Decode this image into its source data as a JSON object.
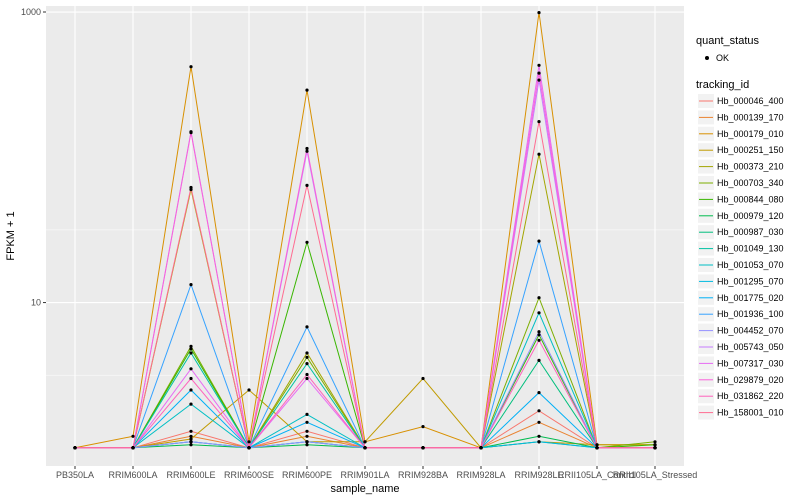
{
  "chart_data": {
    "type": "line",
    "xlabel": "sample_name",
    "ylabel": "FPKM + 1",
    "y_scale": "log10",
    "ylim": [
      0.75,
      1100
    ],
    "y_ticks": [
      10,
      1000
    ],
    "grid": true,
    "legend_placement": "right",
    "background_color": "#ebebeb",
    "grid_color": "#ffffff",
    "categories": [
      "PB350LA",
      "RRIM600LA",
      "RRIM600LE",
      "RRIM600SE",
      "RRIM600PE",
      "RRIM901LA",
      "RRIM928BA",
      "RRIM928LA",
      "RRIM928LE",
      "RRII105LA_Control",
      "RRII105LA_Stressed"
    ],
    "point_legend": {
      "title": "quant_status",
      "label": "OK"
    },
    "series_legend_title": "tracking_id",
    "series": [
      {
        "name": "Hb_000046_400",
        "color": "#F8766D",
        "values": [
          1,
          1,
          1.3,
          1,
          1.3,
          1,
          1,
          1,
          1.8,
          1,
          1
        ]
      },
      {
        "name": "Hb_000139_170",
        "color": "#EA8331",
        "values": [
          1,
          1,
          1.2,
          1,
          1.2,
          1,
          1,
          1,
          1.5,
          1,
          1
        ]
      },
      {
        "name": "Hb_000179_010",
        "color": "#D89000",
        "values": [
          1,
          1.2,
          420,
          1.1,
          290,
          1.1,
          1.4,
          1,
          990,
          1.05,
          1.05
        ]
      },
      {
        "name": "Hb_000251_150",
        "color": "#C09B00",
        "values": [
          1,
          1,
          1.15,
          2.5,
          1.1,
          1.1,
          3.0,
          1,
          1.1,
          1.05,
          1.05
        ]
      },
      {
        "name": "Hb_000373_210",
        "color": "#A3A500",
        "values": [
          1,
          1,
          60,
          1,
          4.5,
          1,
          1,
          1,
          105,
          1,
          1
        ]
      },
      {
        "name": "Hb_000703_340",
        "color": "#7CAE00",
        "values": [
          1,
          1,
          5.0,
          1,
          4.2,
          1,
          1,
          1,
          10.8,
          1,
          1.1
        ]
      },
      {
        "name": "Hb_000844_080",
        "color": "#39B600",
        "values": [
          1,
          1,
          4.8,
          1,
          26,
          1,
          1,
          1,
          6.0,
          1,
          1.05
        ]
      },
      {
        "name": "Hb_000979_120",
        "color": "#00BB4E",
        "values": [
          1,
          1,
          1.05,
          1,
          1.05,
          1,
          1,
          1,
          1.2,
          1,
          1
        ]
      },
      {
        "name": "Hb_000987_030",
        "color": "#00BF7D",
        "values": [
          1,
          1,
          1.1,
          1,
          1.1,
          1,
          1,
          1,
          4.0,
          1,
          1
        ]
      },
      {
        "name": "Hb_001049_130",
        "color": "#00C1A3",
        "values": [
          1,
          1,
          4.5,
          1,
          3.8,
          1,
          1,
          1,
          1.1,
          1,
          1
        ]
      },
      {
        "name": "Hb_001053_070",
        "color": "#00BFC4",
        "values": [
          1,
          1,
          2.0,
          1,
          1.7,
          1,
          1,
          1,
          8.5,
          1,
          1
        ]
      },
      {
        "name": "Hb_001295_070",
        "color": "#00BAE0",
        "values": [
          1,
          1,
          1.1,
          1,
          1.1,
          1,
          1,
          1,
          1.1,
          1,
          1
        ]
      },
      {
        "name": "Hb_001775_020",
        "color": "#00B0F6",
        "values": [
          1,
          1,
          2.5,
          1,
          1.5,
          1,
          1,
          1,
          2.4,
          1,
          1
        ]
      },
      {
        "name": "Hb_001936_100",
        "color": "#35A2FF",
        "values": [
          1,
          1,
          13.3,
          1,
          6.8,
          1,
          1,
          1,
          26.5,
          1,
          1
        ]
      },
      {
        "name": "Hb_004452_070",
        "color": "#9590FF",
        "values": [
          1,
          1,
          1.1,
          1,
          1.1,
          1,
          1,
          1,
          6.3,
          1,
          1
        ]
      },
      {
        "name": "Hb_005743_050",
        "color": "#C77CFF",
        "values": [
          1,
          1,
          150,
          1,
          110,
          1,
          1,
          1,
          340,
          1,
          1
        ]
      },
      {
        "name": "Hb_007317_030",
        "color": "#E76BF3",
        "values": [
          1,
          1,
          3.5,
          1,
          3.0,
          1,
          1,
          1,
          430,
          1,
          1
        ]
      },
      {
        "name": "Hb_029879_020",
        "color": "#FA62DB",
        "values": [
          1,
          1,
          148,
          1,
          115,
          1,
          1,
          1,
          380,
          1,
          1
        ]
      },
      {
        "name": "Hb_031862_220",
        "color": "#FF62BC",
        "values": [
          1,
          1,
          3.0,
          1,
          3.2,
          1,
          1,
          1,
          5.5,
          1,
          1
        ]
      },
      {
        "name": "Hb_158001_010",
        "color": "#FF6C91",
        "values": [
          1,
          1,
          62,
          1,
          64,
          1,
          1,
          1,
          176,
          1,
          1
        ]
      }
    ]
  }
}
